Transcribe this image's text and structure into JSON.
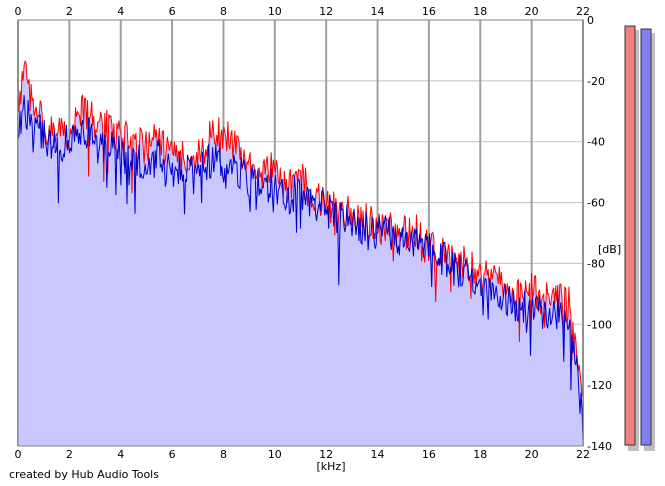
{
  "chart_data": {
    "type": "area",
    "xlabel": "[kHz]",
    "ylabel": "[dB]",
    "xlim": [
      0,
      22
    ],
    "ylim": [
      -140,
      0
    ],
    "x_ticks": [
      0,
      2,
      4,
      6,
      8,
      10,
      12,
      14,
      16,
      18,
      20,
      22
    ],
    "y_ticks": [
      0,
      -20,
      -40,
      -60,
      -80,
      -100,
      -120,
      -140
    ],
    "grid": true,
    "series": [
      {
        "color": "#ff0000",
        "x": [
          0,
          0.25,
          0.5,
          1,
          1.5,
          2,
          2.5,
          3,
          3.5,
          4,
          4.5,
          5,
          5.5,
          6,
          6.5,
          7,
          7.5,
          8,
          8.5,
          9,
          9.5,
          10,
          10.5,
          11,
          11.5,
          12,
          12.5,
          13,
          13.5,
          14,
          14.5,
          15,
          15.5,
          16,
          16.5,
          17,
          17.5,
          18,
          18.5,
          19,
          19.5,
          20,
          20.5,
          21,
          21.5,
          21.8,
          22
        ],
        "values": [
          -28,
          -18,
          -25,
          -34,
          -38,
          -37,
          -30,
          -33,
          -35,
          -38,
          -40,
          -42,
          -39,
          -46,
          -44,
          -45,
          -38,
          -37,
          -42,
          -48,
          -46,
          -50,
          -55,
          -52,
          -58,
          -60,
          -64,
          -63,
          -66,
          -67,
          -68,
          -70,
          -69,
          -74,
          -76,
          -78,
          -80,
          -84,
          -86,
          -88,
          -90,
          -88,
          -92,
          -92,
          -93,
          -115,
          -128
        ]
      },
      {
        "color": "#0000cc",
        "x": [
          0,
          0.25,
          0.5,
          1,
          1.5,
          2,
          2.5,
          3,
          3.5,
          4,
          4.5,
          5,
          5.5,
          6,
          6.5,
          7,
          7.5,
          8,
          8.5,
          9,
          9.5,
          10,
          10.5,
          11,
          11.5,
          12,
          12.5,
          13,
          13.5,
          14,
          14.5,
          15,
          15.5,
          16,
          16.5,
          17,
          17.5,
          18,
          18.5,
          19,
          19.5,
          20,
          20.5,
          21,
          21.5,
          21.8,
          22
        ],
        "values": [
          -35,
          -28,
          -34,
          -38,
          -42,
          -40,
          -36,
          -38,
          -42,
          -44,
          -46,
          -48,
          -45,
          -50,
          -48,
          -49,
          -46,
          -48,
          -50,
          -52,
          -52,
          -54,
          -58,
          -56,
          -60,
          -62,
          -66,
          -66,
          -68,
          -70,
          -70,
          -72,
          -72,
          -76,
          -78,
          -82,
          -82,
          -86,
          -90,
          -92,
          -94,
          -94,
          -96,
          -96,
          -98,
          -118,
          -134
        ]
      }
    ],
    "meters": [
      {
        "color": "#f08080"
      },
      {
        "color": "#8080f0"
      }
    ]
  },
  "footer": {
    "credit": "created by Hub Audio Tools"
  },
  "colors": {
    "fill": "#c8c8ff",
    "grid": "#c0c0c0",
    "major_grid": "#a0a0a0"
  }
}
